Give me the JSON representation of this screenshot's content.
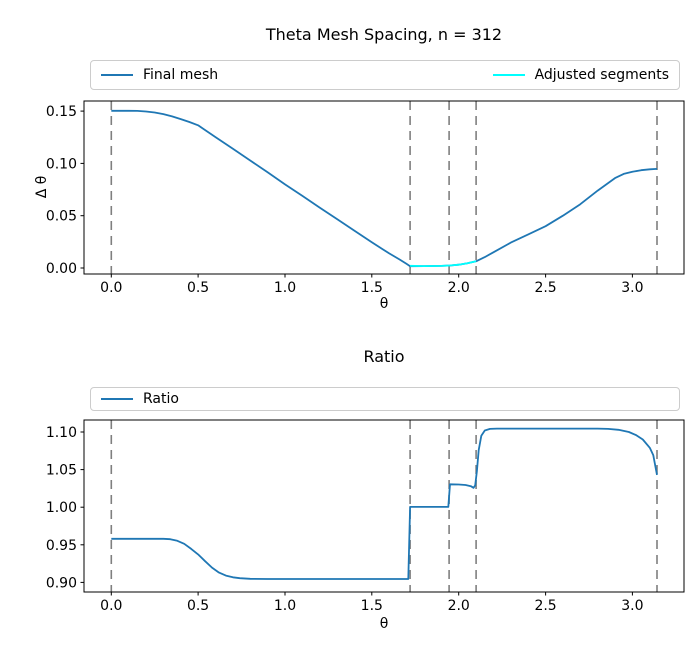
{
  "figure": {
    "background": "#ffffff",
    "accent_blue": "#1f77b4",
    "accent_cyan": "#00ffff",
    "guide_gray": "#7f7f7f"
  },
  "chart_data": [
    {
      "type": "line",
      "title": "Theta Mesh Spacing, n = 312",
      "xlabel": "θ",
      "ylabel": "Δ θ",
      "xlim": [
        -0.157,
        3.297
      ],
      "ylim": [
        -0.0057,
        0.1597
      ],
      "xticks": [
        0.0,
        0.5,
        1.0,
        1.5,
        2.0,
        2.5,
        3.0
      ],
      "xtick_labels": [
        "0.0",
        "0.5",
        "1.0",
        "1.5",
        "2.0",
        "2.5",
        "3.0"
      ],
      "yticks": [
        0.0,
        0.05,
        0.1,
        0.15
      ],
      "ytick_labels": [
        "0.00",
        "0.05",
        "0.10",
        "0.15"
      ],
      "grid": false,
      "legend_position": "expanded row above axes",
      "vlines": {
        "x": [
          0.0,
          1.72,
          1.945,
          2.1,
          3.1416
        ],
        "color": "#7f7f7f",
        "style": "dashed"
      },
      "legend": [
        {
          "label": "Final mesh",
          "color": "#1f77b4"
        },
        {
          "label": "Adjusted segments",
          "color": "#00ffff"
        }
      ],
      "series": [
        {
          "name": "Final mesh",
          "color": "#1f77b4",
          "points": [
            [
              0.0,
              0.1503
            ],
            [
              0.1,
              0.1503
            ],
            [
              0.15,
              0.1502
            ],
            [
              0.2,
              0.1497
            ],
            [
              0.25,
              0.1487
            ],
            [
              0.3,
              0.1472
            ],
            [
              0.35,
              0.145
            ],
            [
              0.4,
              0.1424
            ],
            [
              0.45,
              0.1396
            ],
            [
              0.5,
              0.1365
            ],
            [
              0.6,
              0.1252
            ],
            [
              0.7,
              0.114
            ],
            [
              0.8,
              0.1028
            ],
            [
              0.9,
              0.0915
            ],
            [
              1.0,
              0.08
            ],
            [
              1.1,
              0.069
            ],
            [
              1.2,
              0.0578
            ],
            [
              1.3,
              0.0468
            ],
            [
              1.4,
              0.0356
            ],
            [
              1.5,
              0.0246
            ],
            [
              1.6,
              0.014
            ],
            [
              1.66,
              0.0082
            ],
            [
              1.7,
              0.004
            ],
            [
              1.72,
              0.0018
            ],
            [
              1.8,
              0.0019
            ],
            [
              1.9,
              0.002
            ],
            [
              1.95,
              0.0024
            ],
            [
              2.0,
              0.0032
            ],
            [
              2.05,
              0.0046
            ],
            [
              2.1,
              0.0064
            ],
            [
              2.15,
              0.0105
            ],
            [
              2.2,
              0.015
            ],
            [
              2.3,
              0.0243
            ],
            [
              2.4,
              0.0322
            ],
            [
              2.5,
              0.04
            ],
            [
              2.6,
              0.05
            ],
            [
              2.7,
              0.061
            ],
            [
              2.8,
              0.074
            ],
            [
              2.9,
              0.086
            ],
            [
              2.95,
              0.09
            ],
            [
              3.0,
              0.092
            ],
            [
              3.05,
              0.0935
            ],
            [
              3.1,
              0.0944
            ],
            [
              3.1416,
              0.0948
            ]
          ]
        },
        {
          "name": "Adjusted segments",
          "color": "#00ffff",
          "points": [
            [
              1.72,
              0.0021
            ],
            [
              1.8,
              0.0019
            ],
            [
              1.9,
              0.002
            ],
            [
              1.95,
              0.0024
            ],
            [
              2.0,
              0.0032
            ],
            [
              2.05,
              0.0046
            ],
            [
              2.1,
              0.0064
            ]
          ]
        }
      ]
    },
    {
      "type": "line",
      "title": "Ratio",
      "xlabel": "θ",
      "ylabel": "",
      "xlim": [
        -0.157,
        3.297
      ],
      "ylim": [
        0.8872,
        1.116
      ],
      "xticks": [
        0.0,
        0.5,
        1.0,
        1.5,
        2.0,
        2.5,
        3.0
      ],
      "xtick_labels": [
        "0.0",
        "0.5",
        "1.0",
        "1.5",
        "2.0",
        "2.5",
        "3.0"
      ],
      "yticks": [
        0.9,
        0.95,
        1.0,
        1.05,
        1.1
      ],
      "ytick_labels": [
        "0.90",
        "0.95",
        "1.00",
        "1.05",
        "1.10"
      ],
      "grid": false,
      "legend_position": "expanded row above axes",
      "vlines": {
        "x": [
          0.0,
          1.72,
          1.945,
          2.1,
          3.1416
        ],
        "color": "#7f7f7f",
        "style": "dashed"
      },
      "legend": [
        {
          "label": "Ratio",
          "color": "#1f77b4"
        }
      ],
      "series": [
        {
          "name": "Ratio",
          "color": "#1f77b4",
          "points": [
            [
              0.0,
              0.958
            ],
            [
              0.3,
              0.958
            ],
            [
              0.34,
              0.9575
            ],
            [
              0.38,
              0.9553
            ],
            [
              0.42,
              0.9513
            ],
            [
              0.46,
              0.9445
            ],
            [
              0.5,
              0.9372
            ],
            [
              0.54,
              0.9282
            ],
            [
              0.58,
              0.9196
            ],
            [
              0.62,
              0.913
            ],
            [
              0.66,
              0.909
            ],
            [
              0.7,
              0.9068
            ],
            [
              0.74,
              0.9056
            ],
            [
              0.8,
              0.9048
            ],
            [
              0.9,
              0.9045
            ],
            [
              1.3,
              0.9045
            ],
            [
              1.71,
              0.9045
            ],
            [
              1.72,
              1.0004
            ],
            [
              1.94,
              1.0004
            ],
            [
              1.95,
              1.0305
            ],
            [
              2.0,
              1.0302
            ],
            [
              2.04,
              1.0296
            ],
            [
              2.07,
              1.028
            ],
            [
              2.085,
              1.0258
            ],
            [
              2.095,
              1.029
            ],
            [
              2.105,
              1.048
            ],
            [
              2.115,
              1.076
            ],
            [
              2.13,
              1.095
            ],
            [
              2.15,
              1.102
            ],
            [
              2.18,
              1.1042
            ],
            [
              2.22,
              1.1046
            ],
            [
              2.8,
              1.1046
            ],
            [
              2.86,
              1.1042
            ],
            [
              2.92,
              1.103
            ],
            [
              2.98,
              1.1
            ],
            [
              3.02,
              1.096
            ],
            [
              3.06,
              1.09
            ],
            [
              3.1,
              1.079
            ],
            [
              3.12,
              1.069
            ],
            [
              3.1416,
              1.043
            ]
          ]
        }
      ]
    }
  ]
}
